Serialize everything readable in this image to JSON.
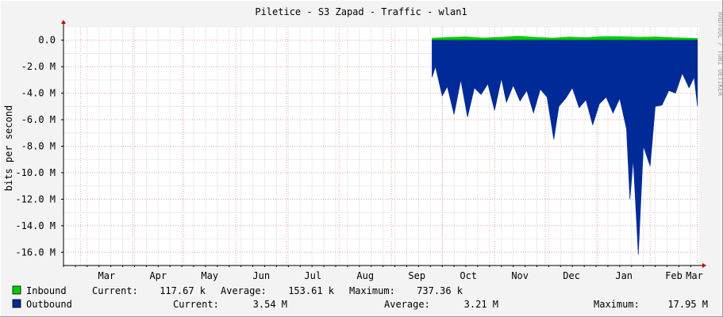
{
  "title": "Piletice - S3 Zapad - Traffic - wlan1",
  "watermark": "RRDTOOL / TOBI OETIKER",
  "chart_data": {
    "type": "area",
    "ylabel": "bits per second",
    "ylim": [
      -17000000,
      1000000
    ],
    "y_ticks": [
      {
        "value": 0,
        "label": "0.0"
      },
      {
        "value": -2000000,
        "label": "-2.0 M"
      },
      {
        "value": -4000000,
        "label": "-4.0 M"
      },
      {
        "value": -6000000,
        "label": "-6.0 M"
      },
      {
        "value": -8000000,
        "label": "-8.0 M"
      },
      {
        "value": -10000000,
        "label": "-10.0 M"
      },
      {
        "value": -12000000,
        "label": "-12.0 M"
      },
      {
        "value": -14000000,
        "label": "-14.0 M"
      },
      {
        "value": -16000000,
        "label": "-16.0 M"
      }
    ],
    "x_range": [
      "2014-02-19",
      "2015-03-02"
    ],
    "x_ticks": [
      {
        "date": "2014-03-01",
        "label": "Mar"
      },
      {
        "date": "2014-04-01",
        "label": "Apr"
      },
      {
        "date": "2014-05-01",
        "label": "May"
      },
      {
        "date": "2014-06-01",
        "label": "Jun"
      },
      {
        "date": "2014-07-01",
        "label": "Jul"
      },
      {
        "date": "2014-08-01",
        "label": "Aug"
      },
      {
        "date": "2014-09-01",
        "label": "Sep"
      },
      {
        "date": "2014-10-01",
        "label": "Oct"
      },
      {
        "date": "2014-11-01",
        "label": "Nov"
      },
      {
        "date": "2014-12-01",
        "label": "Dec"
      },
      {
        "date": "2015-01-01",
        "label": "Jan"
      },
      {
        "date": "2015-02-01",
        "label": "Feb"
      },
      {
        "date": "2015-03-01",
        "label": "Mar"
      }
    ],
    "grid": true,
    "series": [
      {
        "name": "Inbound",
        "color": "#00cc00",
        "x": [
          "2014-09-25",
          "2014-10-05",
          "2014-10-15",
          "2014-10-25",
          "2014-11-05",
          "2014-11-15",
          "2014-11-25",
          "2014-12-05",
          "2014-12-15",
          "2014-12-25",
          "2015-01-05",
          "2015-01-15",
          "2015-01-25",
          "2015-02-05",
          "2015-02-15",
          "2015-02-25",
          "2015-03-01"
        ],
        "values": [
          150000,
          210000,
          260000,
          170000,
          230000,
          310000,
          220000,
          160000,
          240000,
          200000,
          280000,
          270000,
          230000,
          250000,
          190000,
          150000,
          140000
        ]
      },
      {
        "name": "Outbound",
        "color": "#002a97",
        "x": [
          "2014-09-25",
          "2014-09-27",
          "2014-10-01",
          "2014-10-04",
          "2014-10-08",
          "2014-10-12",
          "2014-10-16",
          "2014-10-20",
          "2014-10-24",
          "2014-10-28",
          "2014-11-01",
          "2014-11-05",
          "2014-11-08",
          "2014-11-12",
          "2014-11-16",
          "2014-11-20",
          "2014-11-24",
          "2014-11-28",
          "2014-12-02",
          "2014-12-06",
          "2014-12-09",
          "2014-12-13",
          "2014-12-17",
          "2014-12-21",
          "2014-12-25",
          "2014-12-29",
          "2015-01-02",
          "2015-01-06",
          "2015-01-10",
          "2015-01-14",
          "2015-01-18",
          "2015-01-20",
          "2015-01-22",
          "2015-01-25",
          "2015-01-28",
          "2015-02-01",
          "2015-02-04",
          "2015-02-08",
          "2015-02-12",
          "2015-02-16",
          "2015-02-20",
          "2015-02-24",
          "2015-02-27",
          "2015-03-01"
        ],
        "values": [
          -2800000,
          -2000000,
          -4200000,
          -3500000,
          -5600000,
          -3000000,
          -5800000,
          -3600000,
          -4100000,
          -3300000,
          -5300000,
          -2900000,
          -4700000,
          -3400000,
          -4600000,
          -3800000,
          -5500000,
          -3700000,
          -4300000,
          -7500000,
          -5000000,
          -4400000,
          -3600000,
          -5100000,
          -4500000,
          -6400000,
          -4800000,
          -4300000,
          -5500000,
          -4400000,
          -6700000,
          -12000000,
          -9000000,
          -16200000,
          -8000000,
          -9500000,
          -5000000,
          -4900000,
          -3800000,
          -4000000,
          -2500000,
          -3600000,
          -2800000,
          -5000000
        ]
      }
    ]
  },
  "legend": {
    "inbound": {
      "name": "Inbound",
      "current_label": "Current:",
      "current_value": "117.67 k",
      "average_label": "Average:",
      "average_value": "153.61 k",
      "maximum_label": "Maximum:",
      "maximum_value": "737.36 k"
    },
    "outbound": {
      "name": "Outbound",
      "current_label": "Current:",
      "current_value": "3.54 M",
      "average_label": "Average:",
      "average_value": "3.21 M",
      "maximum_label": "Maximum:",
      "maximum_value": "17.95 M"
    }
  }
}
